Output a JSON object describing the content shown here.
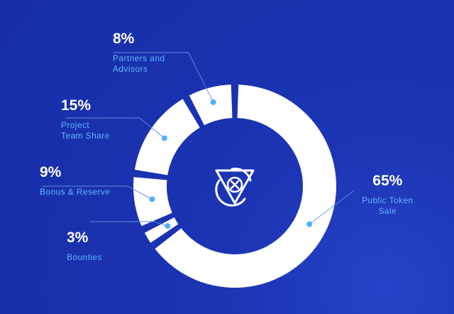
{
  "colors": {
    "background": "#1b34b3",
    "ring": "#ffffff",
    "accent": "#4fb0ff",
    "leader": "#5b8fe0"
  },
  "logo": {
    "icon": "shield-token-logo-icon"
  },
  "chart_data": {
    "type": "pie",
    "variant": "donut",
    "title": "",
    "slices": [
      {
        "label": "Public Token Sale",
        "display_label": "Public Token\nSale",
        "value": 65,
        "value_label": "65%"
      },
      {
        "label": "Bounties",
        "display_label": "Bounties",
        "value": 3,
        "value_label": "3%"
      },
      {
        "label": "Bonus & Reserve",
        "display_label": "Bonus & Reserve",
        "value": 9,
        "value_label": "9%"
      },
      {
        "label": "Project Team Share",
        "display_label": "Project\nTeam Share",
        "value": 15,
        "value_label": "15%"
      },
      {
        "label": "Partners and Advisors",
        "display_label": "Partners and\nAdvisors",
        "value": 8,
        "value_label": "8%"
      }
    ],
    "legend": "none"
  }
}
